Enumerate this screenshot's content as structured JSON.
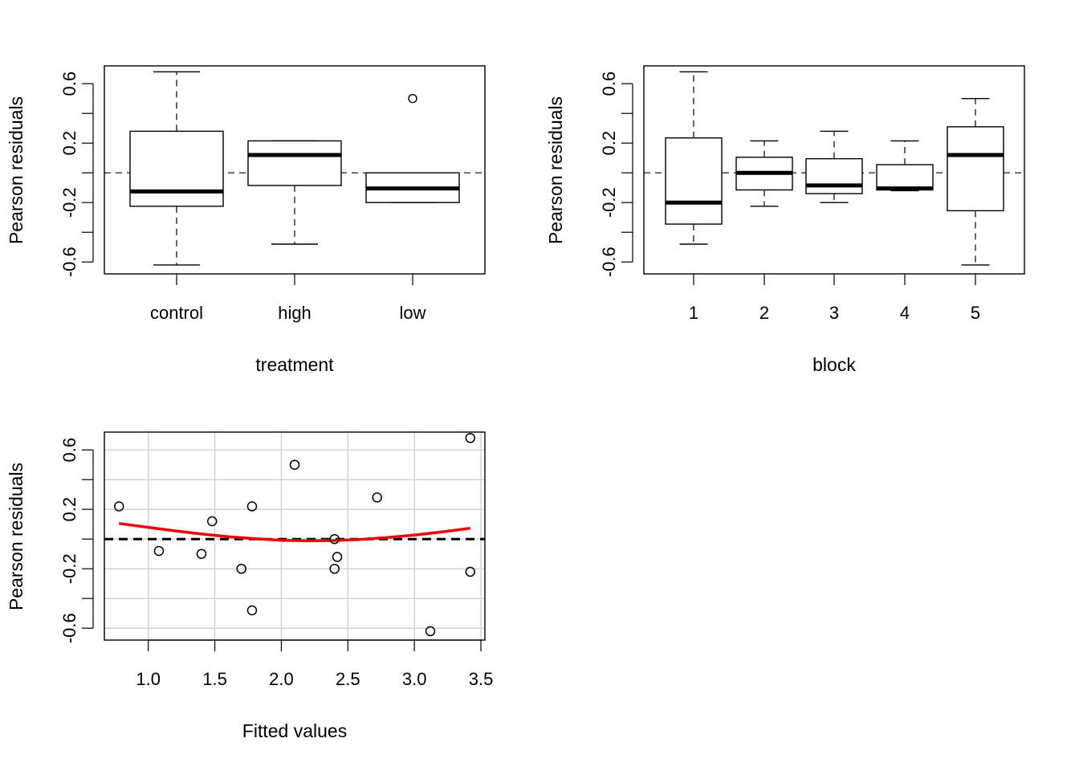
{
  "chart_data": [
    {
      "type": "boxplot",
      "xlabel": "treatment",
      "ylabel": "Pearson residuals",
      "ylim": [
        -0.68,
        0.72
      ],
      "yticks": [
        -0.6,
        -0.4,
        -0.2,
        0.0,
        0.2,
        0.4,
        0.6
      ],
      "ytick_labels": [
        "-0.6",
        "",
        "-0.2",
        "",
        "0.2",
        "",
        "0.6"
      ],
      "reference_line": 0,
      "categories": [
        "control",
        "high",
        "low"
      ],
      "boxes": [
        {
          "name": "control",
          "whisker_low": -0.62,
          "q1": -0.225,
          "median": -0.125,
          "q3": 0.28,
          "whisker_high": 0.68,
          "outliers": []
        },
        {
          "name": "high",
          "whisker_low": -0.48,
          "q1": -0.085,
          "median": 0.12,
          "q3": 0.215,
          "whisker_high": 0.215,
          "outliers": []
        },
        {
          "name": "low",
          "whisker_low": -0.2,
          "q1": -0.2,
          "median": -0.105,
          "q3": 0.0,
          "whisker_high": 0.0,
          "outliers": [
            0.5
          ]
        }
      ]
    },
    {
      "type": "boxplot",
      "xlabel": "block",
      "ylabel": "Pearson residuals",
      "ylim": [
        -0.68,
        0.72
      ],
      "yticks": [
        -0.6,
        -0.4,
        -0.2,
        0.0,
        0.2,
        0.4,
        0.6
      ],
      "ytick_labels": [
        "-0.6",
        "",
        "-0.2",
        "",
        "0.2",
        "",
        "0.6"
      ],
      "reference_line": 0,
      "categories": [
        "1",
        "2",
        "3",
        "4",
        "5"
      ],
      "boxes": [
        {
          "name": "1",
          "whisker_low": -0.48,
          "q1": -0.345,
          "median": -0.2,
          "q3": 0.235,
          "whisker_high": 0.68,
          "outliers": []
        },
        {
          "name": "2",
          "whisker_low": -0.225,
          "q1": -0.115,
          "median": 0.0,
          "q3": 0.105,
          "whisker_high": 0.215,
          "outliers": []
        },
        {
          "name": "3",
          "whisker_low": -0.2,
          "q1": -0.14,
          "median": -0.085,
          "q3": 0.095,
          "whisker_high": 0.28,
          "outliers": []
        },
        {
          "name": "4",
          "whisker_low": -0.12,
          "q1": -0.115,
          "median": -0.105,
          "q3": 0.055,
          "whisker_high": 0.215,
          "outliers": []
        },
        {
          "name": "5",
          "whisker_low": -0.62,
          "q1": -0.255,
          "median": 0.12,
          "q3": 0.31,
          "whisker_high": 0.5,
          "outliers": []
        }
      ]
    },
    {
      "type": "scatter",
      "xlabel": "Fitted values",
      "ylabel": "Pearson residuals",
      "xlim": [
        0.67,
        3.53
      ],
      "ylim": [
        -0.68,
        0.72
      ],
      "xticks": [
        1.0,
        1.5,
        2.0,
        2.5,
        3.0,
        3.5
      ],
      "xtick_labels": [
        "1.0",
        "1.5",
        "2.0",
        "2.5",
        "3.0",
        "3.5"
      ],
      "yticks": [
        -0.6,
        -0.4,
        -0.2,
        0.0,
        0.2,
        0.4,
        0.6
      ],
      "ytick_labels": [
        "-0.6",
        "",
        "-0.2",
        "",
        "0.2",
        "",
        "0.6"
      ],
      "grid": true,
      "reference_line": 0,
      "points": [
        {
          "x": 0.78,
          "y": 0.22
        },
        {
          "x": 1.08,
          "y": -0.08
        },
        {
          "x": 1.4,
          "y": -0.1
        },
        {
          "x": 1.48,
          "y": 0.12
        },
        {
          "x": 1.7,
          "y": -0.2
        },
        {
          "x": 1.78,
          "y": 0.22
        },
        {
          "x": 1.78,
          "y": -0.48
        },
        {
          "x": 2.1,
          "y": 0.5
        },
        {
          "x": 2.4,
          "y": 0.0
        },
        {
          "x": 2.4,
          "y": -0.2
        },
        {
          "x": 2.42,
          "y": -0.12
        },
        {
          "x": 2.72,
          "y": 0.28
        },
        {
          "x": 3.12,
          "y": -0.62
        },
        {
          "x": 3.42,
          "y": 0.68
        },
        {
          "x": 3.42,
          "y": -0.22
        }
      ],
      "smooth_curve": {
        "color": "#ee0000",
        "x": [
          0.78,
          1.0,
          1.2,
          1.4,
          1.6,
          1.8,
          2.0,
          2.2,
          2.4,
          2.6,
          2.8,
          3.0,
          3.2,
          3.42
        ],
        "y": [
          0.105,
          0.079,
          0.055,
          0.034,
          0.016,
          0.002,
          -0.008,
          -0.012,
          -0.01,
          -0.002,
          0.011,
          0.027,
          0.047,
          0.073
        ]
      }
    }
  ]
}
